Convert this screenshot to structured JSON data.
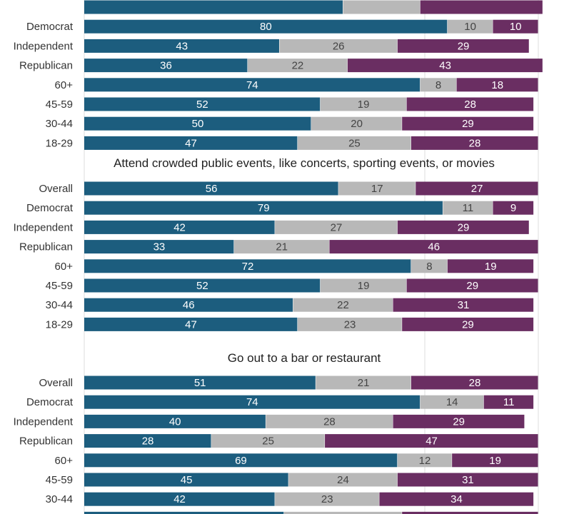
{
  "chart_data": [
    {
      "type": "bar",
      "orientation": "horizontal",
      "stacked": true,
      "title": "",
      "categories": [
        "",
        "Democrat",
        "Independent",
        "Republican",
        "60+",
        "45-59",
        "30-44",
        "18-29"
      ],
      "series": [
        {
          "color": "#1c5d7e",
          "values": [
            57,
            80,
            43,
            36,
            74,
            52,
            50,
            47
          ]
        },
        {
          "color": "#b8b8b8",
          "values": [
            17,
            10,
            26,
            22,
            8,
            19,
            20,
            25
          ]
        },
        {
          "color": "#6a2e62",
          "values": [
            27,
            10,
            29,
            43,
            18,
            28,
            29,
            28
          ]
        }
      ],
      "show_values": [
        false,
        true,
        true,
        true,
        true,
        true,
        true,
        true
      ],
      "xlim": [
        0,
        100
      ],
      "grid": true,
      "legend": "none"
    },
    {
      "type": "bar",
      "orientation": "horizontal",
      "stacked": true,
      "title": "Attend crowded public events, like concerts, sporting events, or movies",
      "categories": [
        "Overall",
        "Democrat",
        "Independent",
        "Republican",
        "60+",
        "45-59",
        "30-44",
        "18-29"
      ],
      "series": [
        {
          "color": "#1c5d7e",
          "values": [
            56,
            79,
            42,
            33,
            72,
            52,
            46,
            47
          ]
        },
        {
          "color": "#b8b8b8",
          "values": [
            17,
            11,
            27,
            21,
            8,
            19,
            22,
            23
          ]
        },
        {
          "color": "#6a2e62",
          "values": [
            27,
            9,
            29,
            46,
            19,
            29,
            31,
            29
          ]
        }
      ],
      "xlim": [
        0,
        100
      ],
      "grid": true,
      "legend": "none"
    },
    {
      "type": "bar",
      "orientation": "horizontal",
      "stacked": true,
      "title": "Go out to a bar or restaurant",
      "categories": [
        "Overall",
        "Democrat",
        "Independent",
        "Republican",
        "60+",
        "45-59",
        "30-44",
        ""
      ],
      "series": [
        {
          "color": "#1c5d7e",
          "values": [
            51,
            74,
            40,
            28,
            69,
            45,
            42,
            44
          ]
        },
        {
          "color": "#b8b8b8",
          "values": [
            21,
            14,
            28,
            25,
            12,
            24,
            23,
            26
          ]
        },
        {
          "color": "#6a2e62",
          "values": [
            28,
            11,
            29,
            47,
            19,
            31,
            34,
            30
          ]
        }
      ],
      "show_values": [
        true,
        true,
        true,
        true,
        true,
        true,
        true,
        false
      ],
      "xlim": [
        0,
        100
      ],
      "grid": true,
      "legend": "none"
    }
  ]
}
